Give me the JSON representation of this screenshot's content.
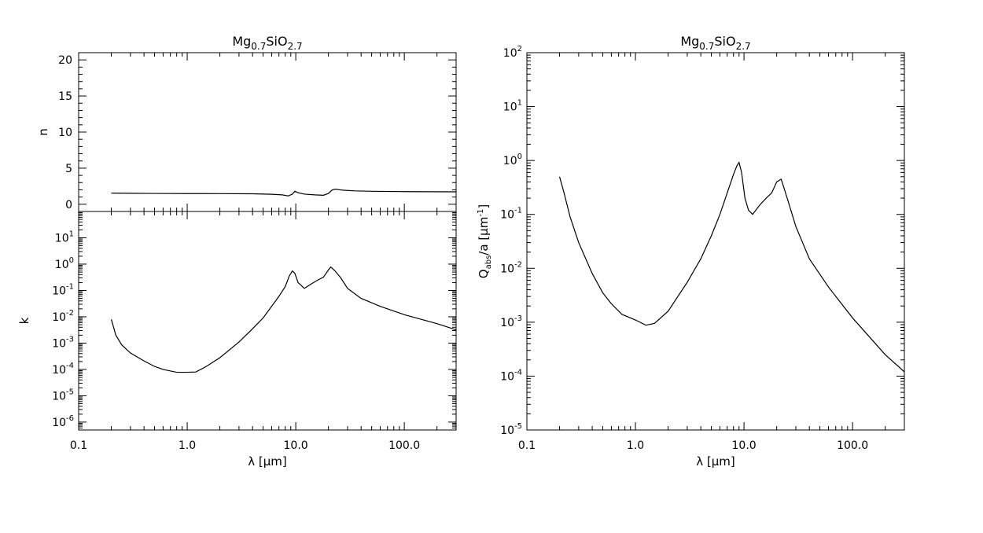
{
  "chart_data": [
    {
      "type": "line",
      "panel": "n",
      "title": "Mg0.7SiO2.7",
      "title_parts": {
        "base1": "Mg",
        "sub1": "0.7",
        "base2": "SiO",
        "sub2": "2.7"
      },
      "ylabel": "n",
      "xlabel": "",
      "x_scale": "log",
      "y_scale": "linear",
      "xlim": [
        0.1,
        300
      ],
      "ylim": [
        -1,
        21
      ],
      "yticks": [
        0,
        5,
        10,
        15,
        20
      ],
      "ytick_labels": [
        "0",
        "5",
        "10",
        "15",
        "20"
      ],
      "series": [
        {
          "x": [
            0.2,
            0.3,
            0.5,
            1.0,
            2.0,
            4.0,
            6.0,
            7.5,
            8.5,
            9.3,
            9.8,
            10.5,
            12,
            15,
            18,
            20,
            21.5,
            23,
            27,
            35,
            50,
            100,
            300
          ],
          "y": [
            1.55,
            1.52,
            1.5,
            1.48,
            1.47,
            1.45,
            1.38,
            1.3,
            1.15,
            1.4,
            1.8,
            1.6,
            1.4,
            1.3,
            1.25,
            1.5,
            1.95,
            2.1,
            1.95,
            1.85,
            1.8,
            1.75,
            1.72
          ]
        }
      ]
    },
    {
      "type": "line",
      "panel": "k",
      "xlabel": "λ [μm]",
      "ylabel": "k",
      "x_scale": "log",
      "y_scale": "log",
      "xlim": [
        0.1,
        300
      ],
      "ylim": [
        5e-07,
        100
      ],
      "xticks": [
        0.1,
        1,
        10,
        100
      ],
      "xtick_labels": [
        "0.1",
        "1.0",
        "10.0",
        "100.0"
      ],
      "yticks": [
        1e-06,
        1e-05,
        0.0001,
        0.001,
        0.01,
        0.1,
        1,
        10
      ],
      "ytick_labels": [
        [
          "10",
          "-6"
        ],
        [
          "10",
          "-5"
        ],
        [
          "10",
          "-4"
        ],
        [
          "10",
          "-3"
        ],
        [
          "10",
          "-2"
        ],
        [
          "10",
          "-1"
        ],
        [
          "10",
          "0"
        ],
        [
          "10",
          "1"
        ]
      ],
      "series": [
        {
          "x": [
            0.2,
            0.22,
            0.25,
            0.3,
            0.4,
            0.5,
            0.6,
            0.8,
            1.0,
            1.2,
            1.5,
            2.0,
            3.0,
            4.0,
            5.0,
            6.0,
            7.0,
            8.0,
            8.7,
            9.3,
            9.8,
            10.5,
            12,
            14,
            16,
            18,
            20,
            21,
            23,
            26,
            30,
            40,
            60,
            100,
            200,
            300
          ],
          "y": [
            0.008,
            0.002,
            0.00085,
            0.00042,
            0.00021,
            0.00013,
            0.0001,
            7.8e-05,
            7.8e-05,
            8e-05,
            0.00013,
            0.00028,
            0.0011,
            0.0035,
            0.009,
            0.025,
            0.06,
            0.14,
            0.35,
            0.55,
            0.45,
            0.2,
            0.12,
            0.18,
            0.25,
            0.32,
            0.6,
            0.78,
            0.55,
            0.3,
            0.12,
            0.05,
            0.025,
            0.012,
            0.0055,
            0.0032
          ]
        }
      ]
    },
    {
      "type": "line",
      "panel": "Qabs/a",
      "title": "Mg0.7SiO2.7",
      "title_parts": {
        "base1": "Mg",
        "sub1": "0.7",
        "base2": "SiO",
        "sub2": "2.7"
      },
      "xlabel": "λ [μm]",
      "ylabel": "Qabs/a [μm-1]",
      "ylabel_parts": {
        "Q": "Q",
        "sub": "abs",
        "rest": "/a [μm",
        "sup": "-1",
        "end": "]"
      },
      "x_scale": "log",
      "y_scale": "log",
      "xlim": [
        0.1,
        300
      ],
      "ylim": [
        1e-05,
        100
      ],
      "xticks": [
        0.1,
        1,
        10,
        100
      ],
      "xtick_labels": [
        "0.1",
        "1.0",
        "10.0",
        "100.0"
      ],
      "yticks": [
        1e-05,
        0.0001,
        0.001,
        0.01,
        0.1,
        1,
        10,
        100
      ],
      "ytick_labels": [
        [
          "10",
          "-5"
        ],
        [
          "10",
          "-4"
        ],
        [
          "10",
          "-3"
        ],
        [
          "10",
          "-2"
        ],
        [
          "10",
          "-1"
        ],
        [
          "10",
          "0"
        ],
        [
          "10",
          "1"
        ],
        [
          "10",
          "2"
        ]
      ],
      "series": [
        {
          "x": [
            0.2,
            0.22,
            0.25,
            0.3,
            0.4,
            0.5,
            0.6,
            0.75,
            1.0,
            1.25,
            1.5,
            2.0,
            3.0,
            4.0,
            5.0,
            6.0,
            7.0,
            8.0,
            8.6,
            9.0,
            9.5,
            10.2,
            11,
            12,
            14,
            16,
            18,
            20,
            22,
            25,
            30,
            40,
            60,
            100,
            200,
            300
          ],
          "y": [
            0.5,
            0.25,
            0.09,
            0.03,
            0.008,
            0.0035,
            0.0022,
            0.0014,
            0.0011,
            0.00088,
            0.00095,
            0.0016,
            0.0055,
            0.015,
            0.04,
            0.1,
            0.25,
            0.55,
            0.8,
            0.92,
            0.6,
            0.2,
            0.12,
            0.1,
            0.15,
            0.2,
            0.25,
            0.4,
            0.45,
            0.2,
            0.06,
            0.015,
            0.0045,
            0.0012,
            0.00025,
            0.00012
          ]
        }
      ]
    }
  ]
}
